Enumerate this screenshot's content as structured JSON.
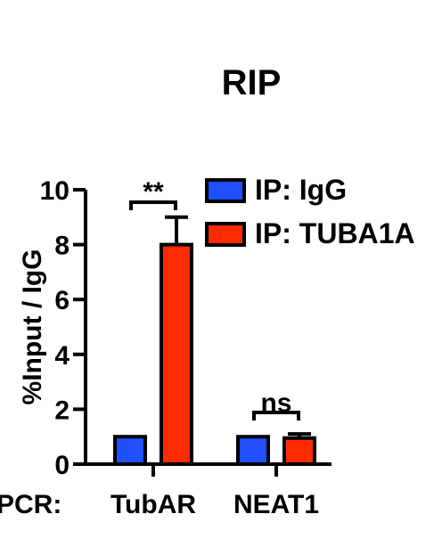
{
  "chart_data": {
    "type": "bar",
    "title": "RIP",
    "xlabel_prefix": "PCR:",
    "ylabel": "%Input / IgG",
    "ylim": [
      0,
      10
    ],
    "yticks": [
      "0",
      "2",
      "4",
      "6",
      "8",
      "10"
    ],
    "categories": [
      "TubAR",
      "NEAT1"
    ],
    "series": [
      {
        "name": "IP: IgG",
        "values": [
          1.0,
          1.0
        ],
        "errors": [
          0,
          0
        ],
        "color": "#1f4fff"
      },
      {
        "name": "IP: TUBA1A",
        "values": [
          8.0,
          0.95
        ],
        "errors": [
          1.0,
          0.15
        ],
        "color": "#ff2a00"
      }
    ],
    "annotations": [
      "**",
      "ns"
    ],
    "legend": "top-right",
    "grid": false
  }
}
